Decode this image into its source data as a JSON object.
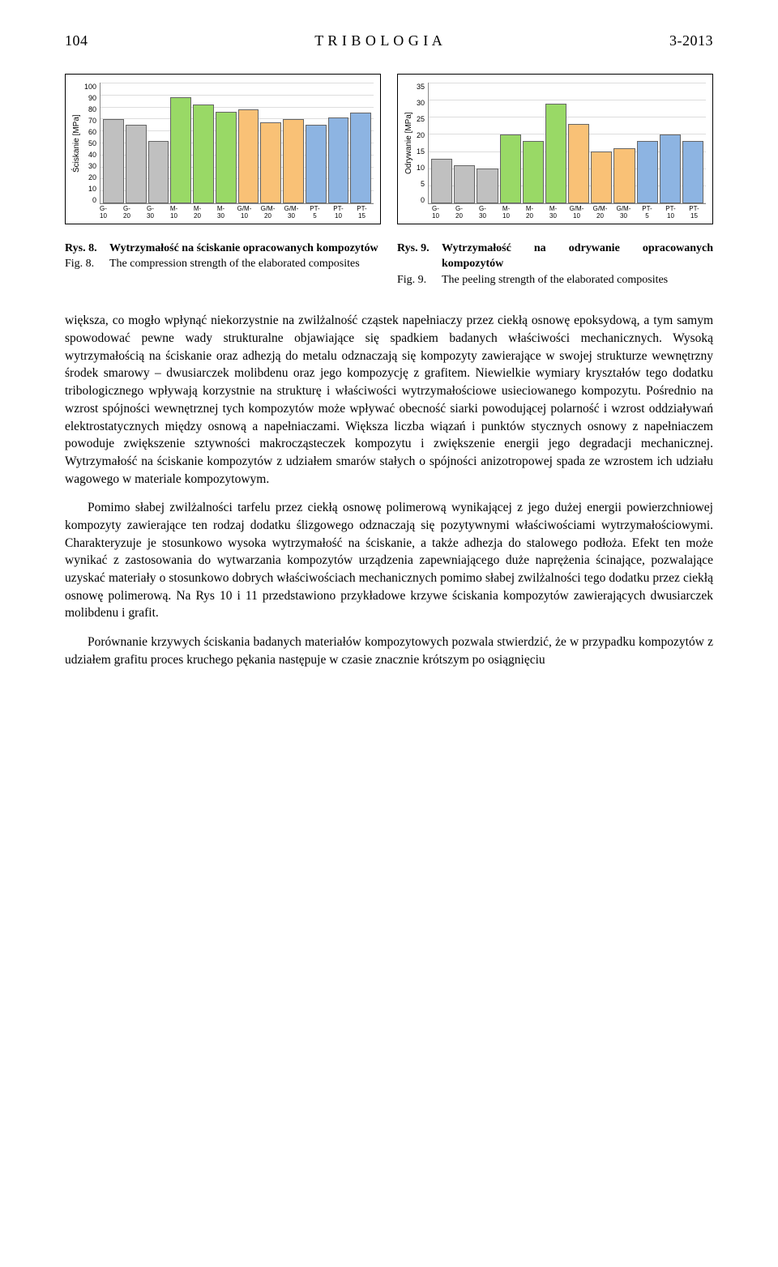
{
  "header": {
    "page": "104",
    "journal": "T R I B O L O G I A",
    "issue": "3-2013"
  },
  "chart_left": {
    "type": "bar",
    "ylabel": "Ściskanie [MPa]",
    "ymin": 0,
    "ymax": 100,
    "ytick_step": 10,
    "categories": [
      "G-10",
      "G-20",
      "G-30",
      "M-10",
      "M-20",
      "M-30",
      "G/M-10",
      "G/M-20",
      "G/M-30",
      "PT-5",
      "PT-10",
      "PT-15"
    ],
    "values": [
      70,
      65,
      52,
      88,
      82,
      76,
      78,
      67,
      70,
      65,
      71,
      75
    ],
    "colors": [
      "#c0c0c0",
      "#c0c0c0",
      "#c0c0c0",
      "#99d966",
      "#99d966",
      "#99d966",
      "#f9c176",
      "#f9c176",
      "#f9c176",
      "#8db4e2",
      "#8db4e2",
      "#8db4e2"
    ],
    "border_color": "#666666",
    "grid_color": "#dddddd",
    "background": "#ffffff",
    "label_fontsize": 10,
    "tick_fontsize": 9
  },
  "chart_right": {
    "type": "bar",
    "ylabel": "Odrywanie [MPa]",
    "ymin": 0,
    "ymax": 35,
    "ytick_step": 5,
    "categories": [
      "G-10",
      "G-20",
      "G-30",
      "M-10",
      "M-20",
      "M-30",
      "G/M-10",
      "G/M-20",
      "G/M-30",
      "PT-5",
      "PT-10",
      "PT-15"
    ],
    "values": [
      13,
      11,
      10,
      20,
      18,
      29,
      23,
      15,
      16,
      18,
      20,
      18
    ],
    "colors": [
      "#c0c0c0",
      "#c0c0c0",
      "#c0c0c0",
      "#99d966",
      "#99d966",
      "#99d966",
      "#f9c176",
      "#f9c176",
      "#f9c176",
      "#8db4e2",
      "#8db4e2",
      "#8db4e2"
    ],
    "border_color": "#666666",
    "grid_color": "#dddddd",
    "background": "#ffffff",
    "label_fontsize": 10,
    "tick_fontsize": 9
  },
  "captions": {
    "left": {
      "rys_label": "Rys. 8.",
      "rys_text": "Wytrzymałość na ściskanie opracowanych kompozytów",
      "fig_label": "Fig. 8.",
      "fig_text": "The compression strength of the elaborated composites"
    },
    "right": {
      "rys_label": "Rys. 9.",
      "rys_text": "Wytrzymałość na odrywanie opracowanych kompozytów",
      "fig_label": "Fig. 9.",
      "fig_text": "The peeling strength of the elaborated composites"
    }
  },
  "body": {
    "p1": "większa, co mogło wpłynąć niekorzystnie na zwilżalność cząstek napełniaczy przez ciekłą osnowę epoksydową, a tym samym spowodować pewne wady strukturalne objawiające się spadkiem badanych właściwości mechanicznych. Wysoką wytrzymałością na ściskanie oraz adhezją do metalu odznaczają się kompozyty zawierające w swojej strukturze wewnętrzny środek smarowy – dwusiarczek molibdenu oraz jego kompozycję z grafitem. Niewielkie wymiary kryształów tego dodatku tribologicznego wpływają korzystnie na strukturę i właściwości wytrzymałościowe usieciowanego kompozytu. Pośrednio na wzrost spójności wewnętrznej tych kompozytów może wpływać obecność siarki powodującej polarność i wzrost oddziaływań elektrostatycznych między osnową a napełniaczami. Większa liczba wiązań i punktów stycznych osnowy z napełniaczem powoduje zwiększenie sztywności makrocząsteczek kompozytu i zwiększenie energii jego degradacji mechanicznej. Wytrzymałość na ściskanie kompozytów z udziałem smarów stałych o spójności anizotropowej spada ze wzrostem ich udziału wagowego w materiale kompozytowym.",
    "p2": "Pomimo słabej zwilżalności tarfelu przez ciekłą osnowę polimerową wynikającej z jego dużej energii powierzchniowej kompozyty zawierające ten rodzaj dodatku ślizgowego odznaczają się pozytywnymi właściwościami wytrzymałościowymi. Charakteryzuje je stosunkowo wysoka wytrzymałość na ściskanie, a także adhezja do stalowego podłoża. Efekt ten może wynikać z zastosowania do wytwarzania kompozytów urządzenia zapewniającego duże naprężenia ścinające, pozwalające uzyskać materiały o stosunkowo dobrych właściwościach mechanicznych pomimo słabej zwilżalności tego dodatku przez ciekłą osnowę polimerową. Na Rys 10 i 11 przedstawiono przykładowe krzywe ściskania kompozytów zawierających dwusiarczek molibdenu i grafit.",
    "p3": "Porównanie krzywych ściskania badanych materiałów kompozytowych pozwala stwierdzić, że w przypadku kompozytów z udziałem grafitu proces kruchego pękania następuje w czasie znacznie krótszym po osiągnięciu"
  }
}
